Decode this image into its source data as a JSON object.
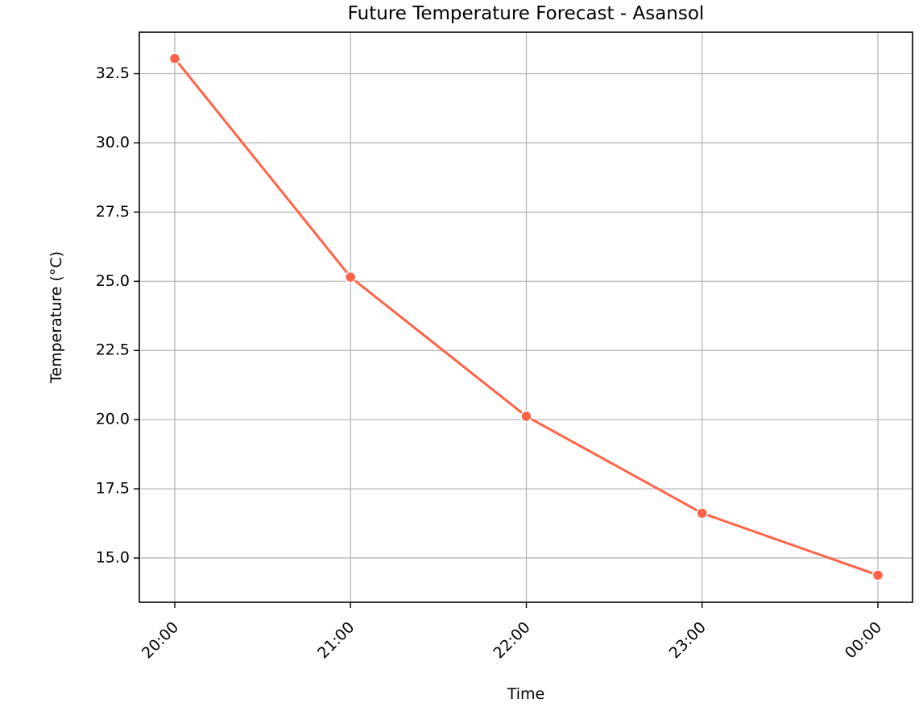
{
  "chart_data": {
    "type": "line",
    "title": "Future Temperature Forecast - Asansol",
    "xlabel": "Time",
    "ylabel": "Temperature (°C)",
    "categories": [
      "20:00",
      "21:00",
      "22:00",
      "23:00",
      "00:00"
    ],
    "series": [
      {
        "values": [
          33.05,
          25.15,
          20.12,
          16.62,
          14.38
        ],
        "color": "#ff6347",
        "marker": "circle"
      }
    ],
    "ylim": [
      13.4,
      34.0
    ],
    "yticks": [
      15.0,
      17.5,
      20.0,
      22.5,
      25.0,
      27.5,
      30.0,
      32.5
    ],
    "ytick_labels": [
      "15.0",
      "17.5",
      "20.0",
      "22.5",
      "25.0",
      "27.5",
      "30.0",
      "32.5"
    ],
    "grid": true,
    "x_tick_rotation": 45
  }
}
